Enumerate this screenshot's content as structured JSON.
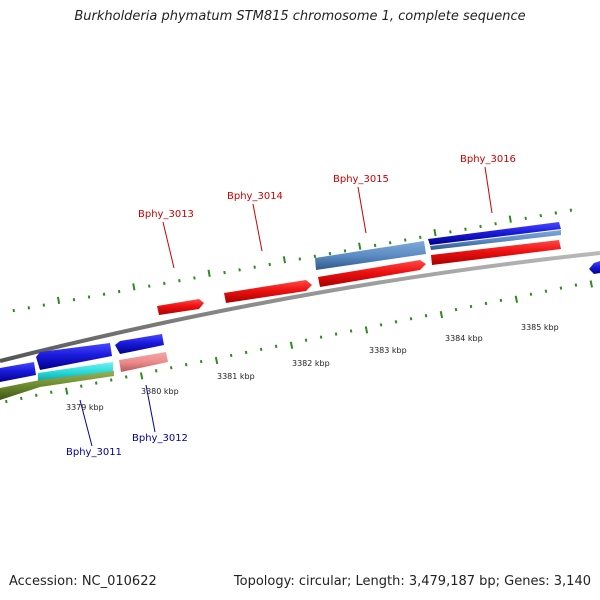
{
  "title": "Burkholderia phymatum STM815 chromosome 1, complete sequence",
  "footer": {
    "accession_label": "Accession: NC_010622",
    "summary": "Topology: circular; Length: 3,479,187 bp; Genes: 3,140"
  },
  "colors": {
    "backbone": "#8a8a8a",
    "tick": "#2e8b1f",
    "forward_gene": "#ee1111",
    "reverse_gene": "#1a1add",
    "label_forward": "#cc0000",
    "label_reverse": "#0000aa"
  },
  "scale_labels": [
    "3379 kbp",
    "3380 kbp",
    "3381 kbp",
    "3382 kbp",
    "3383 kbp",
    "3384 kbp",
    "3385 kbp"
  ],
  "gene_labels": [
    {
      "name": "Bphy_3011",
      "strand": "reverse"
    },
    {
      "name": "Bphy_3012",
      "strand": "reverse"
    },
    {
      "name": "Bphy_3013",
      "strand": "forward"
    },
    {
      "name": "Bphy_3014",
      "strand": "forward"
    },
    {
      "name": "Bphy_3015",
      "strand": "forward"
    },
    {
      "name": "Bphy_3016",
      "strand": "forward"
    }
  ]
}
